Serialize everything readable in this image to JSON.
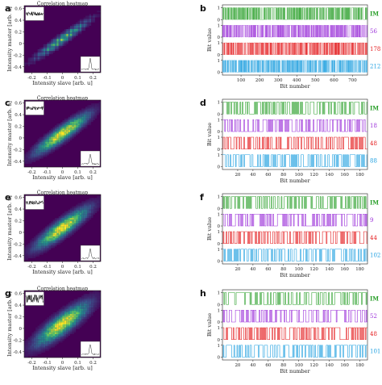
{
  "chart_data": [
    {
      "panel": "a",
      "type": "heatmap",
      "title": "Correlation heatmap",
      "xlabel": "Intensity slave [arb. u]",
      "ylabel": "Intensity master [arb. u]",
      "xticks": [
        "-0.2",
        "-0.1",
        "0",
        "0.1",
        "0.2"
      ],
      "yticks": [
        "0.6",
        "0.4",
        "0.2",
        "0",
        "-0.2",
        "-0.4"
      ],
      "xlim": [
        -0.25,
        0.25
      ],
      "ylim": [
        -0.5,
        0.65
      ],
      "pattern": "discrete",
      "spread": 0.06
    },
    {
      "panel": "b",
      "type": "line",
      "xlabel": "Bit number",
      "ylabel": "Bit value",
      "xticks": [
        "100",
        "200",
        "300",
        "400",
        "500",
        "600",
        "700"
      ],
      "xlim": [
        0,
        780
      ],
      "yticks": [
        "0",
        "1"
      ],
      "series": [
        {
          "name": "IM",
          "color": "#2ca02c",
          "bit_count": 780,
          "seed": 11
        },
        {
          "name": "56",
          "color": "#9b30d9",
          "bit_count": 780,
          "seed": 12
        },
        {
          "name": "178",
          "color": "#e41a1c",
          "bit_count": 780,
          "seed": 13
        },
        {
          "name": "212",
          "color": "#1e9fe0",
          "bit_count": 780,
          "seed": 14
        }
      ]
    },
    {
      "panel": "c",
      "type": "heatmap",
      "title": "Correlation heatmap",
      "xlabel": "Intensity slave [arb. u]",
      "ylabel": "Intensity master [arb. u]",
      "xticks": [
        "-0.2",
        "-0.1",
        "0",
        "0.1",
        "0.2"
      ],
      "yticks": [
        "0.6",
        "0.4",
        "0.2",
        "0",
        "-0.2",
        "-0.4"
      ],
      "xlim": [
        -0.25,
        0.25
      ],
      "ylim": [
        -0.5,
        0.65
      ],
      "pattern": "blob",
      "spread": 0.09
    },
    {
      "panel": "d",
      "type": "line",
      "xlabel": "Bit number",
      "ylabel": "Bit value",
      "xticks": [
        "20",
        "40",
        "60",
        "80",
        "100",
        "120",
        "140",
        "160",
        "180"
      ],
      "xlim": [
        0,
        190
      ],
      "yticks": [
        "0",
        "1"
      ],
      "series": [
        {
          "name": "IM",
          "color": "#2ca02c",
          "bit_count": 190,
          "seed": 21
        },
        {
          "name": "18",
          "color": "#9b30d9",
          "bit_count": 190,
          "seed": 22
        },
        {
          "name": "48",
          "color": "#e41a1c",
          "bit_count": 190,
          "seed": 23
        },
        {
          "name": "88",
          "color": "#1e9fe0",
          "bit_count": 190,
          "seed": 24
        }
      ]
    },
    {
      "panel": "e",
      "type": "heatmap",
      "title": "Correlation heatmap",
      "xlabel": "Intensity slave [arb. u]",
      "ylabel": "Intensity master [arb. u]",
      "xticks": [
        "-0.2",
        "-0.1",
        "0",
        "0.1",
        "0.2"
      ],
      "yticks": [
        "0.6",
        "0.4",
        "0.2",
        "0",
        "-0.2",
        "-0.4"
      ],
      "xlim": [
        -0.25,
        0.25
      ],
      "ylim": [
        -0.5,
        0.65
      ],
      "pattern": "blob",
      "spread": 0.1
    },
    {
      "panel": "f",
      "type": "line",
      "xlabel": "Bit number",
      "ylabel": "Bit value",
      "xticks": [
        "20",
        "40",
        "60",
        "80",
        "100",
        "120",
        "140",
        "160",
        "180"
      ],
      "xlim": [
        0,
        190
      ],
      "yticks": [
        "0",
        "1"
      ],
      "series": [
        {
          "name": "IM",
          "color": "#2ca02c",
          "bit_count": 190,
          "seed": 31
        },
        {
          "name": "9",
          "color": "#9b30d9",
          "bit_count": 190,
          "seed": 32
        },
        {
          "name": "44",
          "color": "#e41a1c",
          "bit_count": 190,
          "seed": 33
        },
        {
          "name": "102",
          "color": "#1e9fe0",
          "bit_count": 190,
          "seed": 34
        }
      ]
    },
    {
      "panel": "g",
      "type": "heatmap",
      "title": "Correlation heatmap",
      "xlabel": "Intensity slave [arb. u]",
      "ylabel": "Intensity master [arb. u]",
      "xticks": [
        "-0.2",
        "-0.1",
        "0",
        "0.1",
        "0.2"
      ],
      "yticks": [
        "0.6",
        "0.4",
        "0.2",
        "0",
        "-0.2",
        "-0.4"
      ],
      "xlim": [
        -0.25,
        0.25
      ],
      "ylim": [
        -0.5,
        0.65
      ],
      "pattern": "wide",
      "spread": 0.12
    },
    {
      "panel": "h",
      "type": "line",
      "xlabel": "Bit number",
      "ylabel": "Bit value",
      "xticks": [
        "20",
        "40",
        "60",
        "80",
        "100",
        "120",
        "140",
        "160",
        "180"
      ],
      "xlim": [
        0,
        190
      ],
      "yticks": [
        "0",
        "1"
      ],
      "series": [
        {
          "name": "IM",
          "color": "#2ca02c",
          "bit_count": 190,
          "seed": 41
        },
        {
          "name": "52",
          "color": "#9b30d9",
          "bit_count": 190,
          "seed": 42
        },
        {
          "name": "48",
          "color": "#e41a1c",
          "bit_count": 190,
          "seed": 43
        },
        {
          "name": "101",
          "color": "#1e9fe0",
          "bit_count": 190,
          "seed": 44
        }
      ]
    }
  ]
}
